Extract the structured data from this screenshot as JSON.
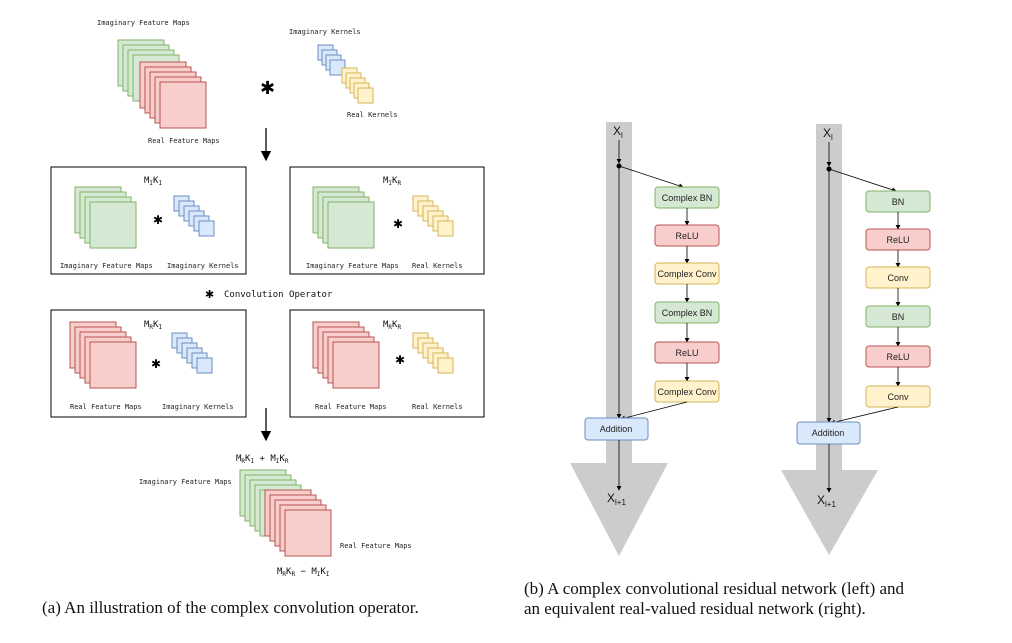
{
  "left_diagram": {
    "top": {
      "imaginary_feature_maps": "Imaginary Feature Maps",
      "imaginary_kernels": "Imaginary Kernels",
      "real_feature_maps": "Real Feature Maps",
      "real_kernels": "Real Kernels",
      "operator_symbol": "✱"
    },
    "boxes": [
      {
        "title": "MIKI",
        "left_label": "Imaginary Feature Maps",
        "right_label": "Imaginary Kernels"
      },
      {
        "title": "MIKR",
        "left_label": "Imaginary Feature Maps",
        "right_label": "Real Kernels"
      },
      {
        "title": "MRKI",
        "left_label": "Real Feature Maps",
        "right_label": "Imaginary Kernels"
      },
      {
        "title": "MRKR",
        "left_label": "Real Feature Maps",
        "right_label": "Real Kernels"
      }
    ],
    "legend": "Convolution Operator",
    "bottom": {
      "top_formula": "MRKI + MIKR",
      "imaginary_feature_maps": "Imaginary Feature Maps",
      "real_feature_maps": "Real Feature Maps",
      "bottom_formula": "MRKR − MIKI"
    }
  },
  "right_diagram": {
    "complex_network": {
      "input": "Xl",
      "nodes": [
        "Complex BN",
        "ReLU",
        "Complex Conv",
        "Complex BN",
        "ReLU",
        "Complex Conv"
      ],
      "addition": "Addition",
      "output": "Xl+1"
    },
    "real_network": {
      "input": "Xl",
      "nodes": [
        "BN",
        "ReLU",
        "Conv",
        "BN",
        "ReLU",
        "Conv"
      ],
      "addition": "Addition",
      "output": "Xl+1"
    }
  },
  "captions": {
    "a": "(a) An illustration of the complex convolution operator.",
    "b_line1": "(b) A complex convolutional residual network (left) and",
    "b_line2": "an equivalent real-valued residual network (right)."
  },
  "colors": {
    "green_fill": "#d5e8d4",
    "green_stroke": "#82b366",
    "red_fill": "#f8cecc",
    "red_stroke": "#b85450",
    "blue_fill": "#dae8fc",
    "blue_stroke": "#6c8ebf",
    "yellow_fill": "#fff2cc",
    "yellow_stroke": "#d6b656",
    "gray_arrow": "#cccccc"
  }
}
